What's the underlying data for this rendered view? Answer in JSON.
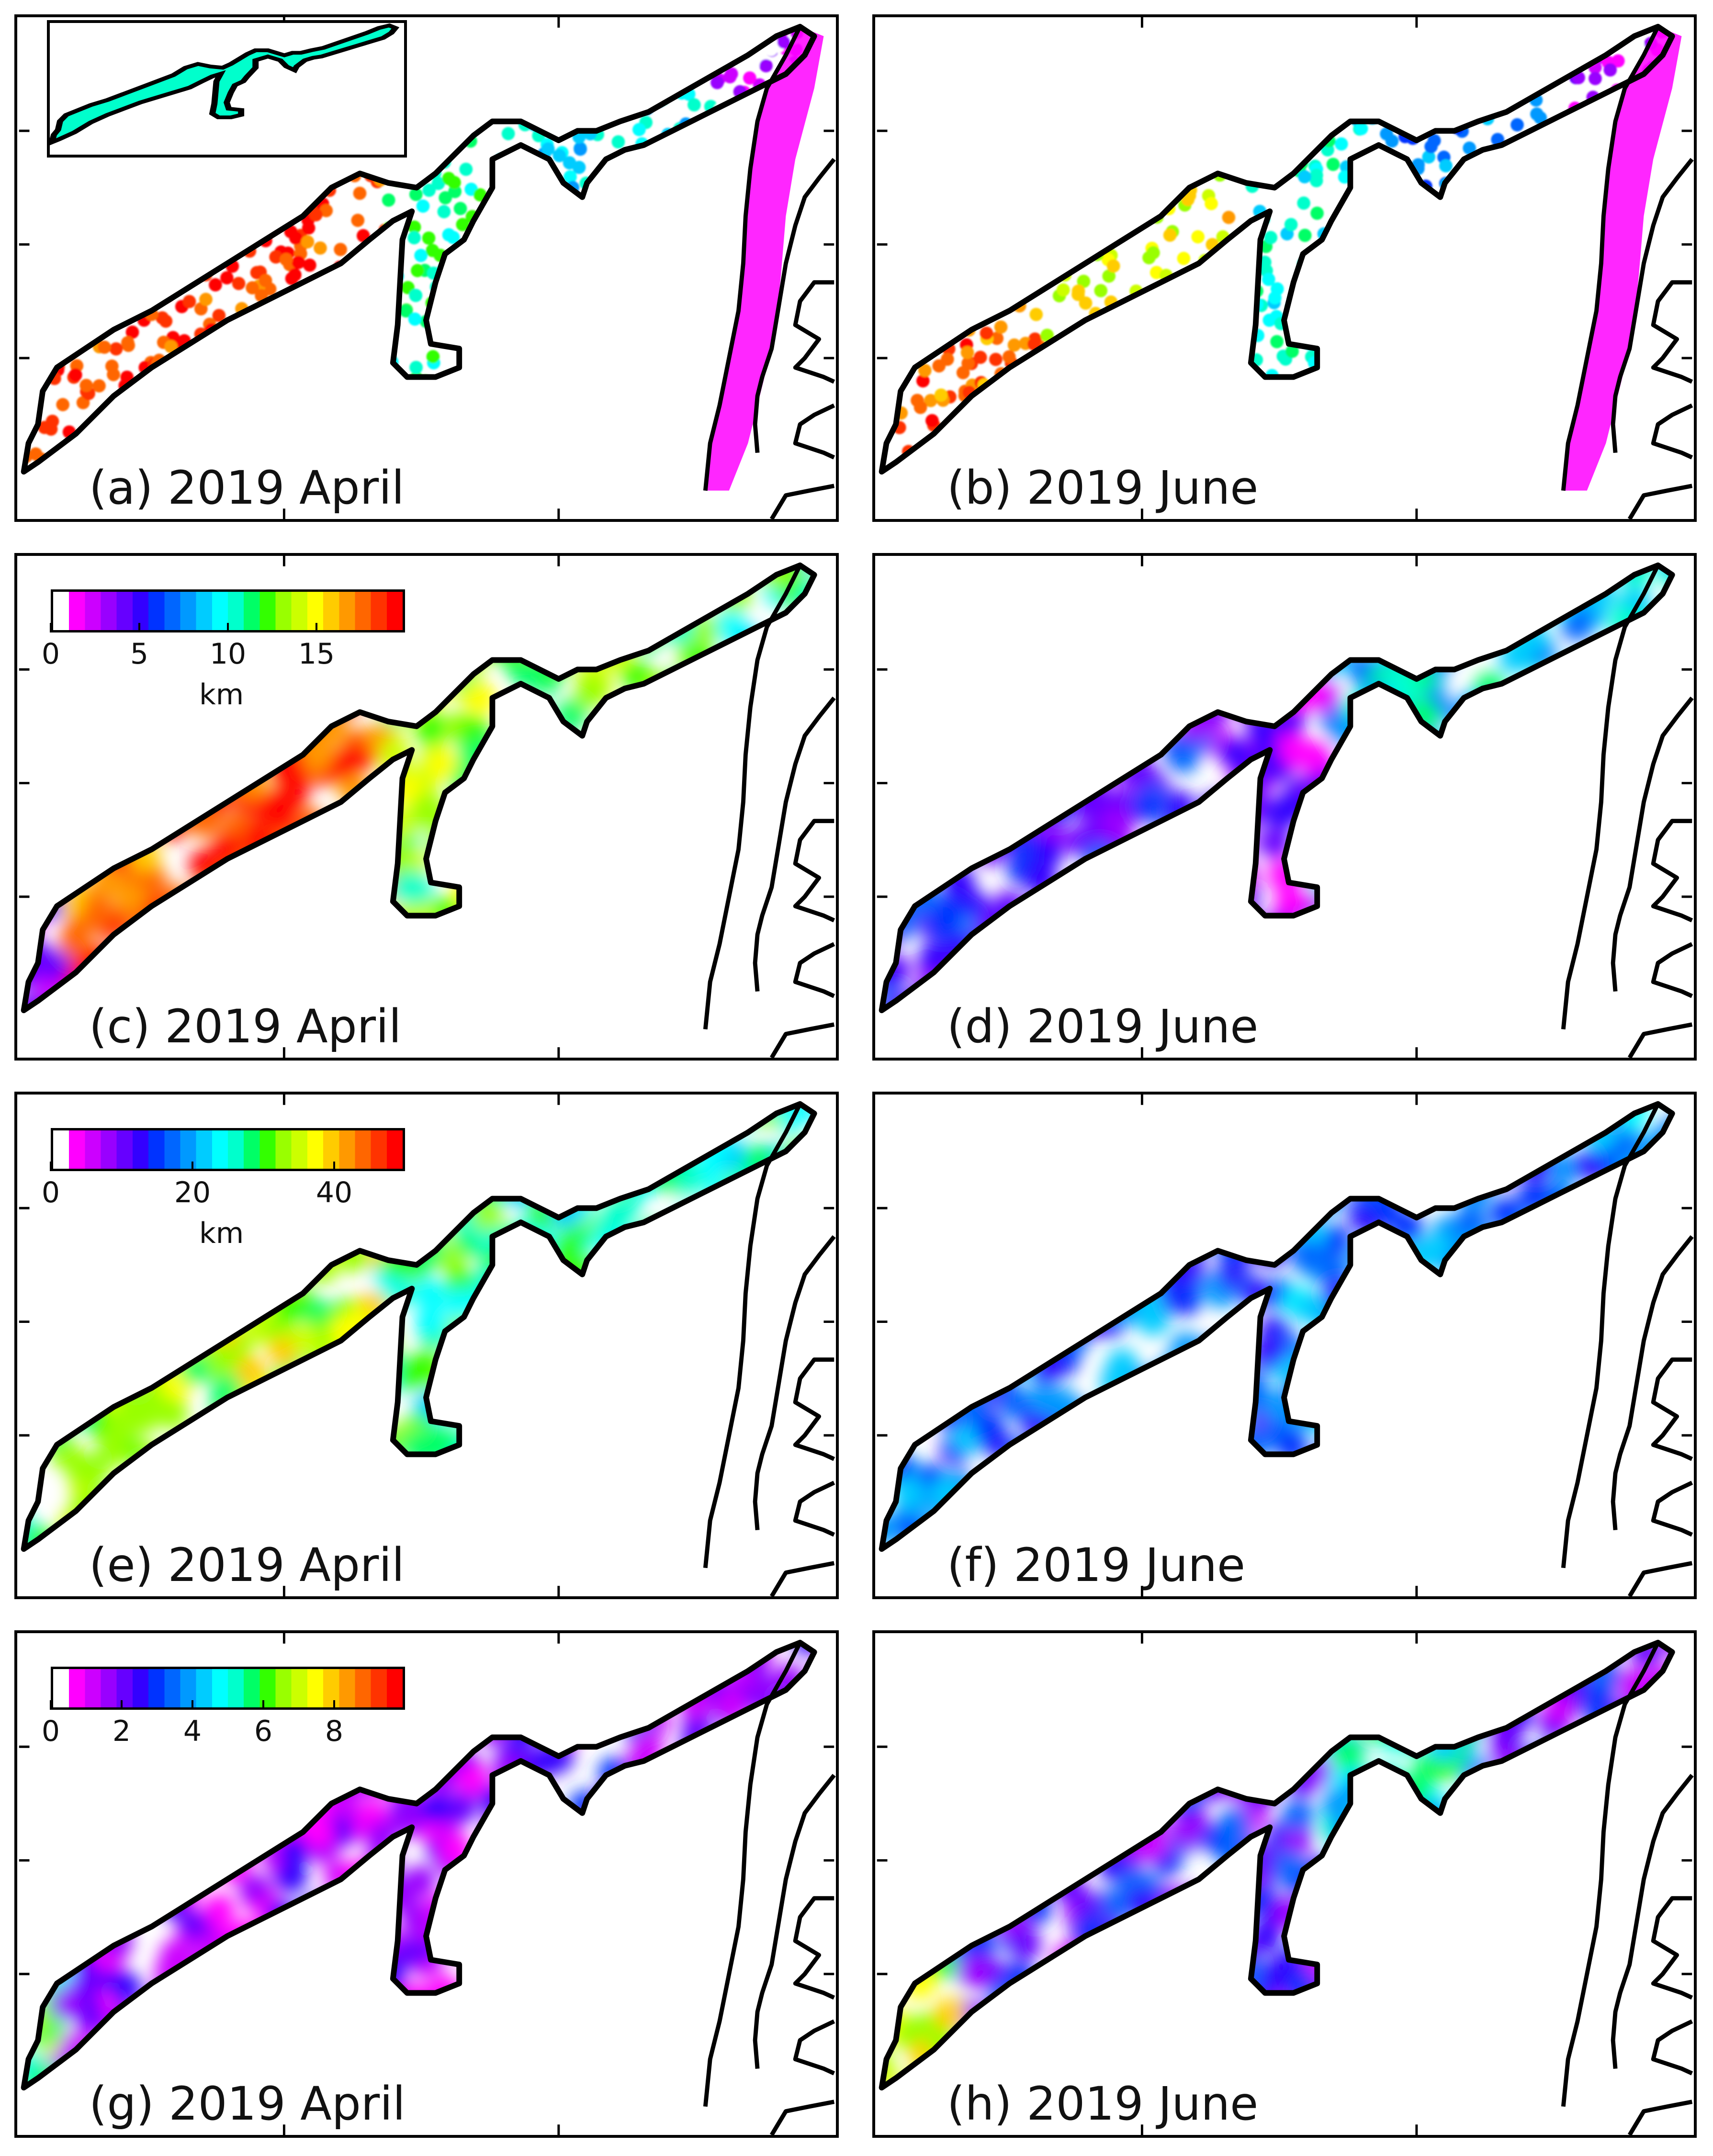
{
  "panels": [
    {
      "label": "(a) 2019 April",
      "variable": "a",
      "month": "April",
      "style": "scatter",
      "palette": "a"
    },
    {
      "label": "(b) 2019 June",
      "variable": "a",
      "month": "June",
      "style": "scatter",
      "palette": "b"
    },
    {
      "label": "(c) 2019 April",
      "variable": "c",
      "month": "April",
      "style": "field",
      "palette": "c"
    },
    {
      "label": "(d) 2019 June",
      "variable": "c",
      "month": "June",
      "style": "field",
      "palette": "d"
    },
    {
      "label": "(e) 2019 April",
      "variable": "e",
      "month": "April",
      "style": "field",
      "palette": "e"
    },
    {
      "label": "(f) 2019 June",
      "variable": "e",
      "month": "June",
      "style": "field",
      "palette": "f"
    },
    {
      "label": "(g) 2019 April",
      "variable": "g",
      "month": "April",
      "style": "field",
      "palette": "g"
    },
    {
      "label": "(h) 2019 June",
      "variable": "g",
      "month": "June",
      "style": "field",
      "palette": "h"
    }
  ],
  "colorbars": [
    {
      "row": 1,
      "ticks": [
        "0",
        "5",
        "10",
        "15"
      ],
      "tick_values": [
        0,
        5,
        10,
        15
      ],
      "max": 20,
      "unit": "km"
    },
    {
      "row": 2,
      "ticks": [
        "0",
        "20",
        "40"
      ],
      "tick_values": [
        0,
        20,
        40
      ],
      "max": 50,
      "unit": "km"
    },
    {
      "row": 3,
      "ticks": [
        "0",
        "2",
        "4",
        "6",
        "8"
      ],
      "tick_values": [
        0,
        2,
        4,
        6,
        8
      ],
      "max": 10,
      "unit": ""
    }
  ],
  "colormap": [
    "#ffffff",
    "#ff00ff",
    "#cc00ff",
    "#9900ff",
    "#6600ff",
    "#3300ff",
    "#0033ff",
    "#0066ff",
    "#0099ff",
    "#00ccff",
    "#00ffff",
    "#00ffcc",
    "#00ff66",
    "#33ff00",
    "#99ff00",
    "#ccff00",
    "#ffff00",
    "#ffcc00",
    "#ff9900",
    "#ff6600",
    "#ff3300",
    "#ff0000"
  ],
  "colors": {
    "coast": "#000000",
    "frame": "#000000",
    "background": "#ffffff"
  }
}
